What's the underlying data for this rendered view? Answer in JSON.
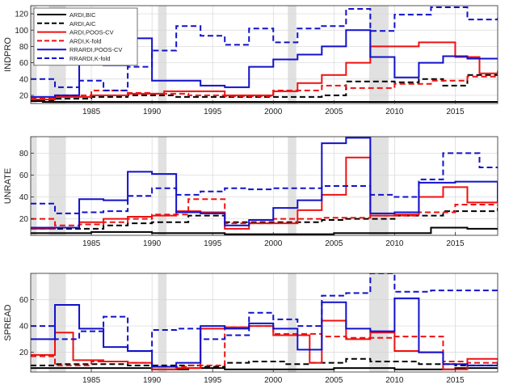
{
  "chart_data": [
    {
      "type": "line",
      "ylabel": "INDPRO",
      "xlim": [
        1980,
        2018.5
      ],
      "ylim": [
        10,
        130
      ],
      "yticks": [
        20,
        40,
        60,
        80,
        100,
        120
      ],
      "xticks": [
        1985,
        1990,
        1995,
        2000,
        2005,
        2010,
        2015
      ],
      "recessions": [
        [
          1980.0,
          1980.5
        ],
        [
          1981.5,
          1982.9
        ],
        [
          1990.5,
          1991.2
        ],
        [
          2001.2,
          2001.9
        ],
        [
          2007.9,
          2009.5
        ]
      ],
      "grid": true,
      "legend": "top-left",
      "series": [
        {
          "name": "ARDI,BIC",
          "color": "#000000",
          "dash": "solid",
          "x": [
            1980,
            1981,
            1985,
            1990,
            1996,
            2005,
            2012,
            2018.5
          ],
          "y": [
            13,
            12,
            12,
            12,
            12,
            12,
            12,
            13
          ]
        },
        {
          "name": "ARDI,AIC",
          "color": "#000000",
          "dash": "dashed",
          "x": [
            1980,
            1982,
            1985,
            1988,
            1992,
            1996,
            2004,
            2006,
            2010,
            2012,
            2014,
            2016,
            2018.5
          ],
          "y": [
            14,
            16,
            18,
            20,
            18,
            18,
            20,
            37,
            36,
            40,
            32,
            45,
            46
          ]
        },
        {
          "name": "ARDI,K-fold",
          "color": "#ee1111",
          "dash": "dashed",
          "x": [
            1980,
            1982,
            1985,
            1988,
            1990,
            1993,
            1996,
            2000,
            2004,
            2006,
            2010,
            2013,
            2016,
            2018.5
          ],
          "y": [
            16,
            20,
            26,
            23,
            22,
            20,
            19,
            26,
            32,
            29,
            34,
            38,
            43,
            45
          ]
        },
        {
          "name": "ARDI,POOS-CV",
          "color": "#ee1111",
          "dash": "solid",
          "x": [
            1980,
            1982,
            1985,
            1988,
            1991,
            1996,
            2000,
            2002,
            2004,
            2006,
            2008,
            2012,
            2015,
            2017,
            2018.5
          ],
          "y": [
            15,
            18,
            20,
            22,
            25,
            20,
            25,
            35,
            45,
            60,
            80,
            85,
            67,
            47,
            50
          ]
        },
        {
          "name": "RRARDI,POOS-CV",
          "color": "#1111cc",
          "dash": "solid",
          "x": [
            1980,
            1982,
            1984,
            1986,
            1988,
            1990,
            1994,
            1996,
            1998,
            2000,
            2002,
            2004,
            2006,
            2008,
            2010,
            2012,
            2014,
            2016,
            2018.5
          ],
          "y": [
            18,
            20,
            60,
            57,
            90,
            38,
            32,
            30,
            55,
            64,
            70,
            80,
            100,
            67,
            42,
            60,
            68,
            65,
            64
          ]
        },
        {
          "name": "RRARDI,K-fold",
          "color": "#1111cc",
          "dash": "dashed",
          "x": [
            1980,
            1982,
            1984,
            1986,
            1988,
            1990,
            1992,
            1994,
            1996,
            1998,
            2000,
            2002,
            2004,
            2006,
            2008,
            2010,
            2013,
            2016,
            2018.5
          ],
          "y": [
            40,
            30,
            38,
            26,
            55,
            75,
            105,
            93,
            82,
            102,
            85,
            102,
            105,
            126,
            99,
            119,
            128,
            113,
            115
          ]
        }
      ]
    },
    {
      "type": "line",
      "ylabel": "UNRATE",
      "xlim": [
        1980,
        2018.5
      ],
      "ylim": [
        5,
        95
      ],
      "yticks": [
        20,
        40,
        60,
        80
      ],
      "xticks": [
        1985,
        1990,
        1995,
        2000,
        2005,
        2010,
        2015
      ],
      "recessions": [
        [
          1980.0,
          1980.5
        ],
        [
          1981.5,
          1982.9
        ],
        [
          1990.5,
          1991.2
        ],
        [
          2001.2,
          2001.9
        ],
        [
          2007.9,
          2009.5
        ]
      ],
      "grid": true,
      "series": [
        {
          "name": "ARDI,BIC",
          "color": "#000000",
          "dash": "solid",
          "x": [
            1980,
            1982,
            1985,
            1990,
            1996,
            2000,
            2005,
            2008,
            2013,
            2016,
            2018.5
          ],
          "y": [
            7,
            7,
            8,
            7,
            6,
            6,
            7,
            7,
            12,
            11,
            10
          ]
        },
        {
          "name": "ARDI,AIC",
          "color": "#000000",
          "dash": "dashed",
          "x": [
            1980,
            1984,
            1986,
            1988,
            1990,
            1993,
            1996,
            2000,
            2004,
            2006,
            2010,
            2014,
            2018.5
          ],
          "y": [
            11,
            11,
            14,
            16,
            17,
            23,
            17,
            17,
            19,
            20,
            23,
            27,
            30
          ]
        },
        {
          "name": "ARDI,K-fold",
          "color": "#ee1111",
          "dash": "dashed",
          "x": [
            1980,
            1982,
            1984,
            1986,
            1988,
            1990,
            1993,
            1996,
            2000,
            2004,
            2008,
            2012,
            2015,
            2018.5
          ],
          "y": [
            20,
            14,
            15,
            17,
            20,
            24,
            38,
            16,
            20,
            21,
            23,
            26,
            33,
            32
          ]
        },
        {
          "name": "ARDI,POOS-CV",
          "color": "#ee1111",
          "dash": "solid",
          "x": [
            1980,
            1982,
            1984,
            1986,
            1988,
            1990,
            1992,
            1994,
            1996,
            1998,
            2000,
            2002,
            2004,
            2006,
            2008,
            2010,
            2012,
            2014,
            2016,
            2018.5
          ],
          "y": [
            11,
            12,
            17,
            20,
            22,
            23,
            27,
            26,
            11,
            16,
            16,
            28,
            42,
            76,
            23,
            24,
            40,
            49,
            35,
            35
          ]
        },
        {
          "name": "RRARDI,POOS-CV",
          "color": "#1111cc",
          "dash": "solid",
          "x": [
            1980,
            1982,
            1984,
            1986,
            1988,
            1990,
            1992,
            1994,
            1996,
            1998,
            2000,
            2002,
            2004,
            2006,
            2008,
            2010,
            2012,
            2015,
            2018.5
          ],
          "y": [
            12,
            12,
            38,
            37,
            63,
            61,
            26,
            25,
            14,
            19,
            30,
            37,
            89,
            94,
            25,
            26,
            53,
            54,
            35
          ]
        },
        {
          "name": "RRARDI,K-fold",
          "color": "#1111cc",
          "dash": "dashed",
          "x": [
            1980,
            1982,
            1984,
            1986,
            1988,
            1990,
            1992,
            1994,
            1996,
            1998,
            2000,
            2004,
            2008,
            2010,
            2012,
            2014,
            2017,
            2018.5
          ],
          "y": [
            34,
            25,
            26,
            27,
            41,
            48,
            42,
            45,
            48,
            47,
            48,
            50,
            42,
            40,
            56,
            80,
            67,
            67
          ]
        }
      ]
    },
    {
      "type": "line",
      "ylabel": "SPREAD",
      "xlim": [
        1980,
        2018.5
      ],
      "ylim": [
        5,
        80
      ],
      "yticks": [
        20,
        40,
        60
      ],
      "xticks": [
        1985,
        1990,
        1995,
        2000,
        2005,
        2010,
        2015
      ],
      "xticklabels": [
        "1985",
        "1990",
        "1995",
        "2000",
        "2005",
        "2010",
        "2015"
      ],
      "recessions": [
        [
          1980.0,
          1980.5
        ],
        [
          1981.5,
          1982.9
        ],
        [
          1990.5,
          1991.2
        ],
        [
          2001.2,
          2001.9
        ],
        [
          2007.9,
          2009.5
        ]
      ],
      "grid": true,
      "series": [
        {
          "name": "ARDI,BIC",
          "color": "#000000",
          "dash": "solid",
          "x": [
            1980,
            1983,
            1986,
            1990,
            1993,
            1996,
            2000,
            2005,
            2010,
            2015,
            2018.5
          ],
          "y": [
            8,
            8,
            8,
            7,
            8,
            7,
            7,
            8,
            7,
            8,
            8
          ]
        },
        {
          "name": "ARDI,AIC",
          "color": "#000000",
          "dash": "dashed",
          "x": [
            1980,
            1982,
            1985,
            1988,
            1991,
            1994,
            1996,
            1998,
            2001,
            2003,
            2006,
            2008,
            2012,
            2015,
            2018.5
          ],
          "y": [
            10,
            11,
            11,
            10,
            10,
            9,
            12,
            13,
            11,
            12,
            15,
            13,
            11,
            10,
            13
          ]
        },
        {
          "name": "ARDI,K-fold",
          "color": "#ee1111",
          "dash": "dashed",
          "x": [
            1980,
            1982,
            1985,
            1988,
            1990,
            1993,
            1996,
            1998,
            2000,
            2004,
            2006,
            2010,
            2014,
            2016,
            2018.5
          ],
          "y": [
            17,
            10,
            13,
            12,
            9,
            10,
            39,
            40,
            34,
            32,
            31,
            32,
            13,
            12,
            15
          ]
        },
        {
          "name": "ARDI,POOS-CV",
          "color": "#ee1111",
          "dash": "solid",
          "x": [
            1980,
            1982,
            1983.5,
            1986,
            1988,
            1990,
            1992,
            1994,
            1996,
            1998,
            2000,
            2003,
            2004,
            2006,
            2008,
            2010,
            2012,
            2014,
            2016,
            2018.5
          ],
          "y": [
            18,
            35,
            14,
            13,
            12,
            7,
            8,
            38,
            39,
            40,
            33,
            12,
            44,
            30,
            35,
            21,
            20,
            7,
            15,
            14
          ]
        },
        {
          "name": "RRARDI,POOS-CV",
          "color": "#1111cc",
          "dash": "solid",
          "x": [
            1980,
            1982,
            1984,
            1986,
            1988,
            1990,
            1992,
            1994,
            1996,
            1998,
            2000,
            2002,
            2004,
            2006,
            2008,
            2010,
            2012,
            2014,
            2016,
            2018.5
          ],
          "y": [
            30,
            56,
            38,
            24,
            21,
            9,
            12,
            40,
            38,
            42,
            38,
            22,
            58,
            38,
            36,
            61,
            20,
            11,
            10,
            11
          ]
        },
        {
          "name": "RRARDI,K-fold",
          "color": "#1111cc",
          "dash": "dashed",
          "x": [
            1980,
            1982,
            1984,
            1986,
            1988,
            1990,
            1992,
            1994,
            1996,
            1998,
            2000,
            2002,
            2004,
            2006,
            2008,
            2010,
            2013,
            2016,
            2018.5
          ],
          "y": [
            40,
            30,
            36,
            47,
            21,
            37,
            38,
            30,
            33,
            50,
            45,
            40,
            63,
            65,
            80,
            66,
            67,
            67,
            68
          ]
        }
      ]
    }
  ]
}
